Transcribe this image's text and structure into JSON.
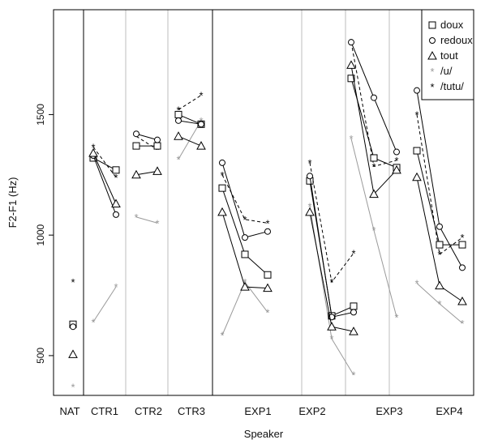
{
  "chart_data": {
    "type": "line",
    "xlabel": "Speaker",
    "ylabel": "F2-F1 (Hz)",
    "ylim": [
      335,
      1935
    ],
    "yticks": [
      500,
      1000,
      1500
    ],
    "speakers": [
      "NAT",
      "CTR1",
      "CTR2",
      "CTR3",
      "EXP1",
      "EXP2",
      "EXP3",
      "EXP4"
    ],
    "panels": [
      {
        "speaker": "NAT",
        "conditions": 1
      },
      {
        "speaker": "CTR1",
        "conditions": 2
      },
      {
        "speaker": "CTR2",
        "conditions": 2
      },
      {
        "speaker": "CTR3",
        "conditions": 2
      },
      {
        "speaker": "EXP1",
        "conditions": 3
      },
      {
        "speaker": "EXP2",
        "conditions": 3
      },
      {
        "speaker": "EXP3",
        "conditions": 3
      },
      {
        "speaker": "EXP4",
        "conditions": 3
      }
    ],
    "legend": {
      "position": "top-right",
      "entries": [
        {
          "label": "doux",
          "marker": "square",
          "color": "#000000",
          "line": "solid"
        },
        {
          "label": "redoux",
          "marker": "circle",
          "color": "#000000",
          "line": "solid"
        },
        {
          "label": "tout",
          "marker": "triangle",
          "color": "#000000",
          "line": "solid"
        },
        {
          "label": "/u/",
          "marker": "star",
          "color": "#9a9a9a",
          "line": "solid"
        },
        {
          "label": "/tutu/",
          "marker": "star",
          "color": "#000000",
          "line": "dashed"
        }
      ]
    },
    "series": [
      {
        "name": "doux",
        "values": {
          "NAT": [
            630
          ],
          "CTR1": [
            1320,
            1270
          ],
          "CTR2": [
            1370,
            1370
          ],
          "CTR3": [
            1500,
            1460
          ],
          "EXP1": [
            1195,
            920,
            835
          ],
          "EXP2": [
            1225,
            665,
            705
          ],
          "EXP3": [
            1650,
            1320,
            1280
          ],
          "EXP4": [
            1350,
            960,
            960
          ]
        }
      },
      {
        "name": "redoux",
        "values": {
          "NAT": [
            620
          ],
          "CTR1": [
            1330,
            1085
          ],
          "CTR2": [
            1420,
            1395
          ],
          "CTR3": [
            1475,
            1460
          ],
          "EXP1": [
            1300,
            990,
            1015
          ],
          "EXP2": [
            1245,
            660,
            680
          ],
          "EXP3": [
            1800,
            1570,
            1345
          ],
          "EXP4": [
            1600,
            1035,
            865
          ]
        }
      },
      {
        "name": "tout",
        "values": {
          "NAT": [
            505
          ],
          "CTR1": [
            1340,
            1130
          ],
          "CTR2": [
            1250,
            1265
          ],
          "CTR3": [
            1410,
            1370
          ],
          "EXP1": [
            1095,
            785,
            780
          ],
          "EXP2": [
            1095,
            620,
            600
          ],
          "EXP3": [
            1705,
            1170,
            1270
          ],
          "EXP4": [
            1240,
            790,
            725
          ]
        }
      },
      {
        "name": "/u/",
        "values": {
          "NAT": [
            370
          ],
          "CTR1": [
            640,
            785
          ],
          "CTR2": [
            1075,
            1050
          ],
          "CTR3": [
            1315,
            1475
          ],
          "EXP1": [
            585,
            805,
            680
          ],
          "EXP2": [
            1120,
            570,
            420
          ],
          "EXP3": [
            1400,
            1020,
            660
          ],
          "EXP4": [
            800,
            715,
            635
          ]
        }
      },
      {
        "name": "/tutu/",
        "values": {
          "NAT": [
            805
          ],
          "CTR1": [
            1365,
            1240
          ],
          "CTR2": [
            1410,
            1355
          ],
          "CTR3": [
            1520,
            1580
          ],
          "EXP1": [
            1250,
            1065,
            1050
          ],
          "EXP2": [
            1300,
            805,
            925
          ],
          "EXP3": [
            1800,
            1285,
            1310
          ],
          "EXP4": [
            1500,
            920,
            990
          ]
        }
      }
    ]
  }
}
